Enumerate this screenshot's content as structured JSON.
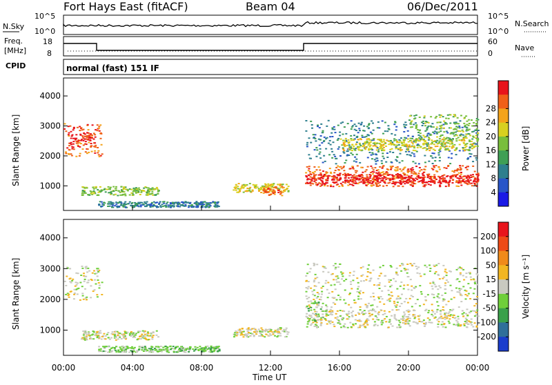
{
  "header": {
    "station": "Fort Hays East (fitACF)",
    "beam": "Beam 04",
    "date": "06/Dec/2011"
  },
  "top_panel": {
    "left_label_1": "N.Sky",
    "left_label_2": "Freq.",
    "left_label_3": "[MHz]",
    "left_label_4": "CPID",
    "right_label_1": "N.Search",
    "right_label_2": "Nave",
    "sky_ticks": [
      "10^5",
      "10^0"
    ],
    "search_ticks": [
      "10^5",
      "10^0"
    ],
    "freq_ticks": [
      "18",
      "8"
    ],
    "nave_ticks": [
      "60",
      "0"
    ],
    "cpid_text": "normal (fast) 151 IF"
  },
  "chart_data": [
    {
      "type": "heatmap",
      "quantity": "Power",
      "ylabel": "Slant Range [km]",
      "xlabel": "Time UT",
      "x_ticks": [
        "00:00",
        "04:00",
        "08:00",
        "12:00",
        "16:00",
        "20:00",
        "00:00"
      ],
      "y_ticks": [
        1000,
        2000,
        3000,
        4000
      ],
      "ylim": [
        180,
        4600
      ],
      "colorbar_label": "Power [dB]",
      "colorbar_ticks": [
        4,
        8,
        12,
        16,
        20,
        24,
        28
      ],
      "colors": [
        "#1a1ae6",
        "#2855c8",
        "#2e7f8e",
        "#3f9f55",
        "#79be3c",
        "#d8d020",
        "#f4a31a",
        "#f06018",
        "#e8141b"
      ],
      "regions": [
        {
          "t0": 0.0,
          "t1": 2.2,
          "r0": 2000,
          "r1": 3100,
          "level": 7
        },
        {
          "t0": 0.2,
          "t1": 1.8,
          "r0": 2300,
          "r1": 2800,
          "level": 8
        },
        {
          "t0": 1.0,
          "t1": 5.5,
          "r0": 700,
          "r1": 1000,
          "level": 4
        },
        {
          "t0": 2.0,
          "t1": 9.0,
          "r0": 300,
          "r1": 500,
          "level": 2
        },
        {
          "t0": 9.8,
          "t1": 13.0,
          "r0": 800,
          "r1": 1100,
          "level": 5
        },
        {
          "t0": 11.5,
          "t1": 12.7,
          "r0": 700,
          "r1": 1000,
          "level": 7
        },
        {
          "t0": 14.0,
          "t1": 24.0,
          "r0": 1000,
          "r1": 1700,
          "level": 7
        },
        {
          "t0": 14.0,
          "t1": 24.0,
          "r0": 1100,
          "r1": 1400,
          "level": 8
        },
        {
          "t0": 14.0,
          "t1": 24.0,
          "r0": 1750,
          "r1": 3200,
          "level": 2
        },
        {
          "t0": 16.0,
          "t1": 24.0,
          "r0": 2200,
          "r1": 2600,
          "level": 5
        },
        {
          "t0": 20.0,
          "t1": 24.0,
          "r0": 2500,
          "r1": 3400,
          "level": 4
        }
      ]
    },
    {
      "type": "heatmap",
      "quantity": "Velocity",
      "ylabel": "Slant Range [km]",
      "xlabel": "Time UT",
      "x_ticks": [
        "00:00",
        "04:00",
        "08:00",
        "12:00",
        "16:00",
        "20:00",
        "00:00"
      ],
      "y_ticks": [
        1000,
        2000,
        3000,
        4000
      ],
      "ylim": [
        180,
        4600
      ],
      "colorbar_label": "Velocity [m s⁻¹]",
      "colorbar_ticks": [
        200,
        100,
        50,
        15,
        -15,
        -50,
        -100,
        -200
      ],
      "colors": [
        "#1a3dcc",
        "#2f6f9a",
        "#3aa04a",
        "#6fcf3a",
        "#c9c9c0",
        "#f2b622",
        "#f08a1a",
        "#ee4a16",
        "#e8141b"
      ],
      "regions": [
        {
          "t0": 0.0,
          "t1": 2.2,
          "r0": 2000,
          "r1": 3100,
          "level": 4
        },
        {
          "t0": 1.0,
          "t1": 5.5,
          "r0": 700,
          "r1": 1000,
          "level": 4
        },
        {
          "t0": 2.0,
          "t1": 9.0,
          "r0": 300,
          "r1": 500,
          "level": 3
        },
        {
          "t0": 9.8,
          "t1": 13.0,
          "r0": 800,
          "r1": 1100,
          "level": 4
        },
        {
          "t0": 14.0,
          "t1": 24.0,
          "r0": 1100,
          "r1": 1700,
          "level": 4
        },
        {
          "t0": 14.0,
          "t1": 24.0,
          "r0": 1750,
          "r1": 3200,
          "level": 4
        },
        {
          "t0": 14.0,
          "t1": 15.0,
          "r0": 1300,
          "r1": 2000,
          "level": 3
        }
      ]
    }
  ]
}
